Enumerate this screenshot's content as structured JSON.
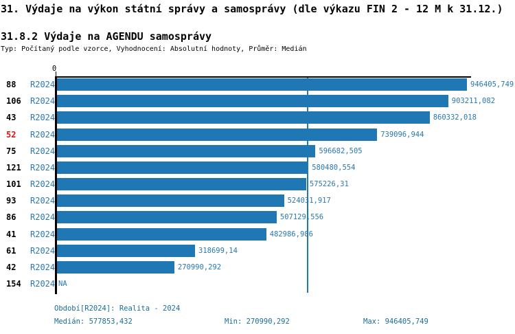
{
  "title": "31. Výdaje na výkon státní správy a samosprávy (dle výkazu FIN 2 - 12 M k 31.12.)",
  "subtitle": "31.8.2 Výdaje na AGENDU samosprávy",
  "meta_line": "Typ: Počítaný podle vzorce, Vyhodnocení: Absolutní hodnoty, Průměr: Medián",
  "colors": {
    "bar": "#1f77b4",
    "label_blue": "#2878b4",
    "footer_text": "#186f96",
    "highlight_red": "#dd1111",
    "axis": "#000000"
  },
  "axis": {
    "zero_label": "0"
  },
  "chart_data": {
    "type": "bar",
    "orientation": "horizontal",
    "value_axis_min": 0,
    "value_axis_max": 946405.749,
    "median_value": 577853.432,
    "median_line": true,
    "rows": [
      {
        "id": "88",
        "period": "R2024",
        "value": 946405.749,
        "label": "946405,749",
        "highlight": false
      },
      {
        "id": "106",
        "period": "R2024",
        "value": 903211.082,
        "label": "903211,082",
        "highlight": false
      },
      {
        "id": "43",
        "period": "R2024",
        "value": 860332.018,
        "label": "860332,018",
        "highlight": false
      },
      {
        "id": "52",
        "period": "R2024",
        "value": 739096.944,
        "label": "739096,944",
        "highlight": true
      },
      {
        "id": "75",
        "period": "R2024",
        "value": 596682.505,
        "label": "596682,505",
        "highlight": false
      },
      {
        "id": "121",
        "period": "R2024",
        "value": 580480.554,
        "label": "580480,554",
        "highlight": false
      },
      {
        "id": "101",
        "period": "R2024",
        "value": 575226.31,
        "label": "575226,31",
        "highlight": false
      },
      {
        "id": "93",
        "period": "R2024",
        "value": 524031.917,
        "label": "524031,917",
        "highlight": false
      },
      {
        "id": "86",
        "period": "R2024",
        "value": 507129.556,
        "label": "507129,556",
        "highlight": false
      },
      {
        "id": "41",
        "period": "R2024",
        "value": 482986.986,
        "label": "482986,986",
        "highlight": false
      },
      {
        "id": "61",
        "period": "R2024",
        "value": 318699.14,
        "label": "318699,14",
        "highlight": false
      },
      {
        "id": "42",
        "period": "R2024",
        "value": 270990.292,
        "label": "270990,292",
        "highlight": false
      },
      {
        "id": "154",
        "period": "R2024",
        "value": null,
        "label": "NA",
        "highlight": false
      }
    ]
  },
  "footer": {
    "period_line": "Období[R2024]: Realita - 2024",
    "median": "Medián: 577853,432",
    "min": "Min: 270990,292",
    "max": "Max: 946405,749"
  }
}
